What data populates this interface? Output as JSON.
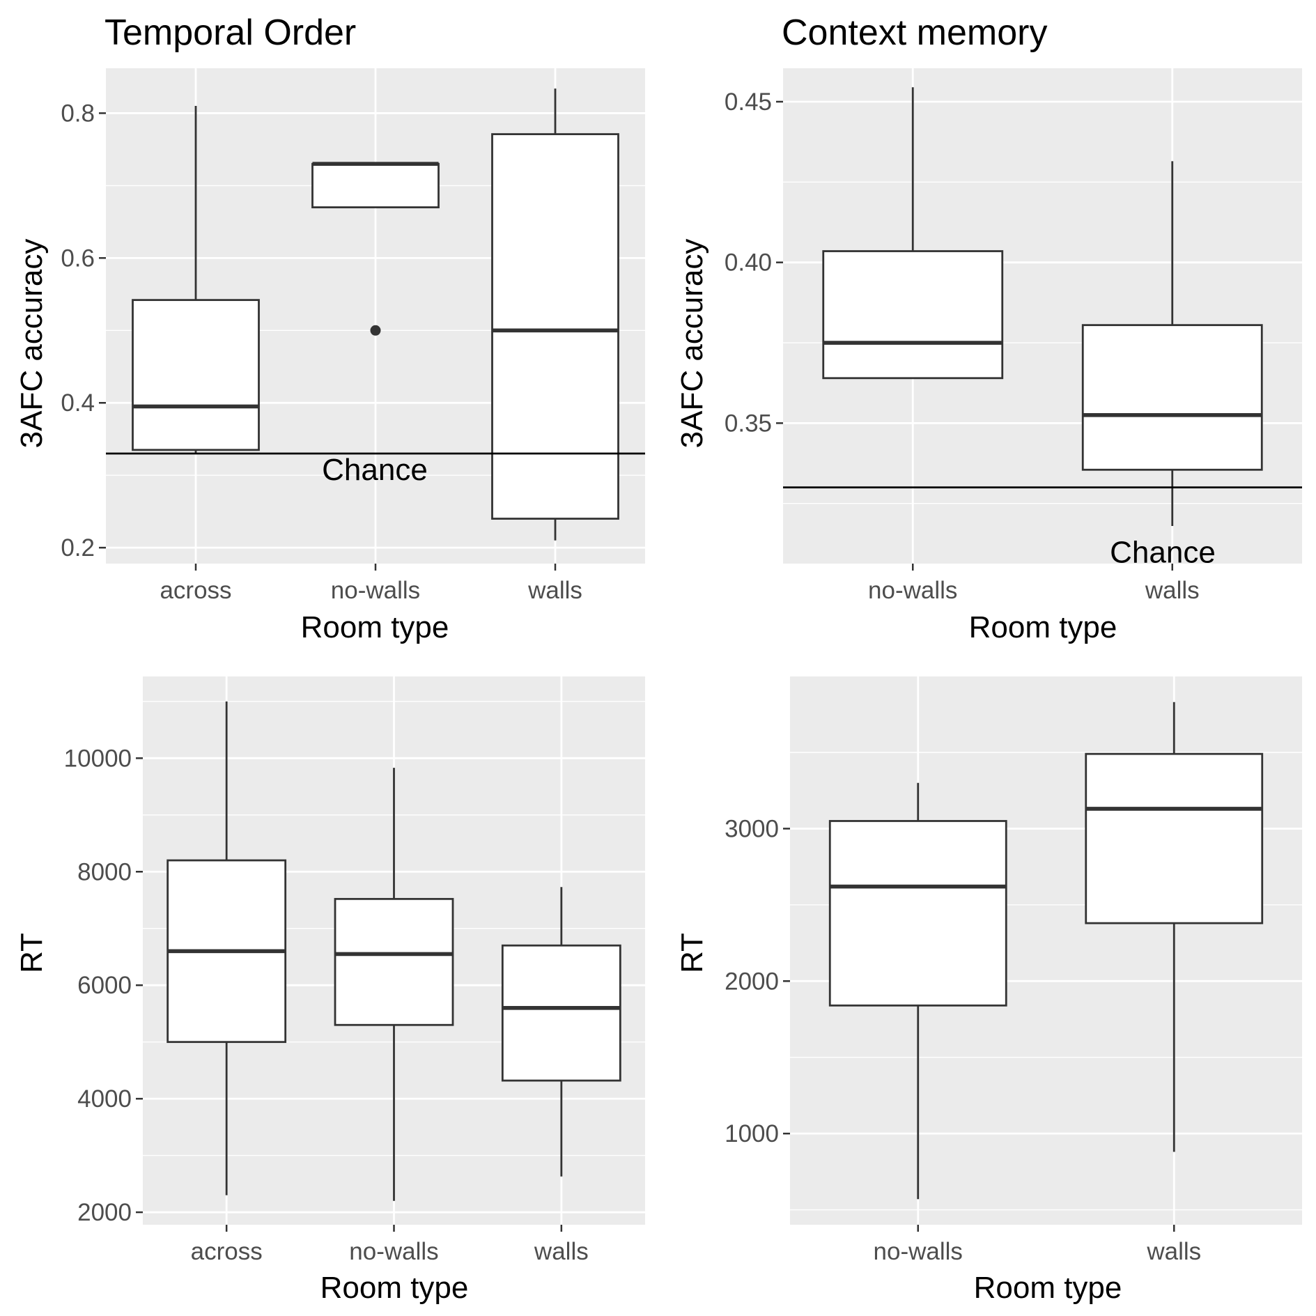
{
  "chart_data": [
    {
      "id": "temporal-accuracy",
      "type": "boxplot",
      "title": "Temporal Order",
      "xlabel": "Room type",
      "ylabel": "3AFC accuracy",
      "ylim": [
        0.178,
        0.862
      ],
      "yticks": [
        0.2,
        0.4,
        0.6,
        0.8
      ],
      "ytick_labels": [
        "0.2",
        "0.4",
        "0.6",
        "0.8"
      ],
      "categories": [
        "across",
        "no-walls",
        "walls"
      ],
      "boxes": [
        {
          "min": 0.33,
          "q1": 0.335,
          "median": 0.395,
          "q3": 0.542,
          "max": 0.81,
          "outliers": []
        },
        {
          "min": 0.67,
          "q1": 0.67,
          "median": 0.73,
          "q3": 0.73,
          "max": 0.73,
          "outliers": [
            0.5
          ]
        },
        {
          "min": 0.21,
          "q1": 0.24,
          "median": 0.5,
          "q3": 0.771,
          "max": 0.834,
          "outliers": []
        }
      ],
      "hline": {
        "y": 0.33,
        "label": "Chance"
      },
      "grid": true,
      "legend": "none"
    },
    {
      "id": "context-accuracy",
      "type": "boxplot",
      "title": "Context memory",
      "xlabel": "Room type",
      "ylabel": "3AFC accuracy",
      "ylim": [
        0.3063,
        0.4604
      ],
      "yticks": [
        0.35,
        0.4,
        0.45
      ],
      "ytick_labels": [
        "0.35",
        "0.40",
        "0.45"
      ],
      "categories": [
        "no-walls",
        "walls"
      ],
      "boxes": [
        {
          "min": 0.364,
          "q1": 0.364,
          "median": 0.375,
          "q3": 0.4035,
          "max": 0.4545,
          "outliers": []
        },
        {
          "min": 0.318,
          "q1": 0.3355,
          "median": 0.3525,
          "q3": 0.3805,
          "max": 0.4315,
          "outliers": []
        }
      ],
      "hline": {
        "y": 0.33,
        "label": "Chance"
      },
      "grid": true,
      "legend": "none"
    },
    {
      "id": "temporal-rt",
      "type": "boxplot",
      "title": "",
      "xlabel": "Room type",
      "ylabel": "RT",
      "ylim": [
        1780,
        11440
      ],
      "yticks": [
        2000,
        4000,
        6000,
        8000,
        10000
      ],
      "ytick_labels": [
        "2000",
        "4000",
        "6000",
        "8000",
        "10000"
      ],
      "categories": [
        "across",
        "no-walls",
        "walls"
      ],
      "boxes": [
        {
          "min": 2300,
          "q1": 5000,
          "median": 6600,
          "q3": 8200,
          "max": 11000,
          "outliers": []
        },
        {
          "min": 2200,
          "q1": 5300,
          "median": 6550,
          "q3": 7520,
          "max": 9830,
          "outliers": []
        },
        {
          "min": 2630,
          "q1": 4320,
          "median": 5600,
          "q3": 6700,
          "max": 7730,
          "outliers": []
        }
      ],
      "grid": true,
      "legend": "none"
    },
    {
      "id": "context-rt",
      "type": "boxplot",
      "title": "",
      "xlabel": "Room type",
      "ylabel": "RT",
      "ylim": [
        402,
        3998
      ],
      "yticks": [
        1000,
        2000,
        3000
      ],
      "ytick_labels": [
        "1000",
        "2000",
        "3000"
      ],
      "categories": [
        "no-walls",
        "walls"
      ],
      "boxes": [
        {
          "min": 570,
          "q1": 1840,
          "median": 2620,
          "q3": 3050,
          "max": 3300,
          "outliers": []
        },
        {
          "min": 880,
          "q1": 2380,
          "median": 3130,
          "q3": 3490,
          "max": 3830,
          "outliers": []
        }
      ],
      "grid": true,
      "legend": "none"
    }
  ]
}
